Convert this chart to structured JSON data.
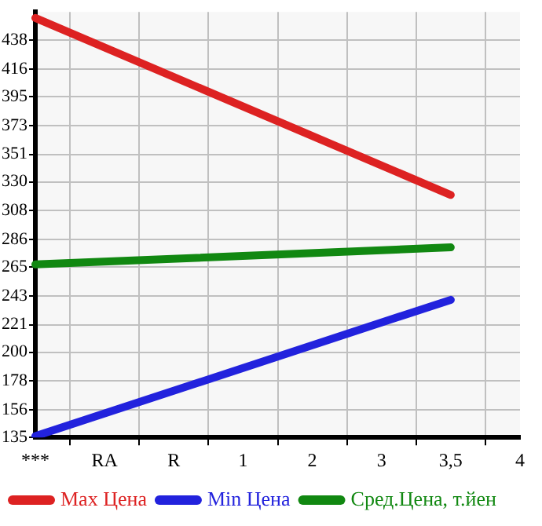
{
  "chart_data": {
    "type": "line",
    "categories": [
      "***",
      "RA",
      "R",
      "1",
      "2",
      "3",
      "3,5",
      "4"
    ],
    "series": [
      {
        "name": "Max Цена",
        "color": "#dd2222",
        "values": [
          455,
          null,
          null,
          null,
          null,
          null,
          320,
          null
        ]
      },
      {
        "name": "Min Цена",
        "color": "#2222dd",
        "values": [
          136,
          null,
          null,
          null,
          null,
          null,
          240,
          null
        ]
      },
      {
        "name": "Сред.Цена, т.йен",
        "color": "#118811",
        "values": [
          267,
          null,
          null,
          null,
          null,
          null,
          280,
          null
        ]
      }
    ],
    "ylim": [
      135,
      459.6
    ],
    "yticks": [
      135,
      156,
      178,
      200,
      221,
      243,
      265,
      286,
      308,
      330,
      351,
      373,
      395,
      416,
      438
    ],
    "grid": true,
    "legend": "bottom",
    "marker": "none",
    "line_style": "solid"
  }
}
